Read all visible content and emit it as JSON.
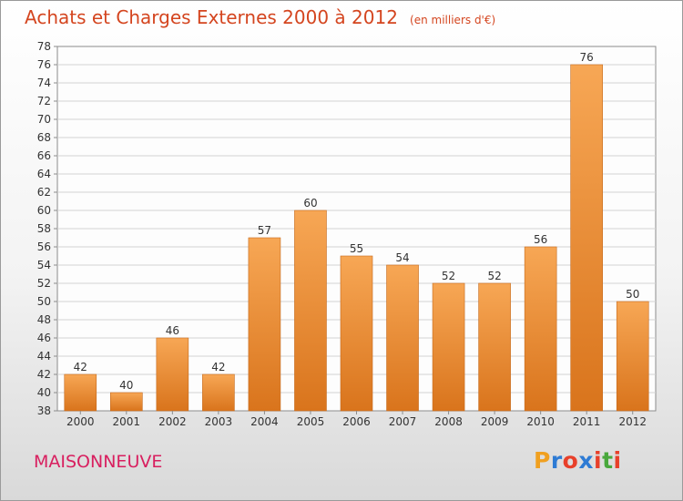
{
  "header": {
    "title": "Achats et Charges Externes 2000 à 2012",
    "subtitle": "(en milliers d'€)"
  },
  "footer": {
    "commune": "MAISONNEUVE",
    "logo_text": "Proxiti",
    "logo_colors": [
      "#f0a020",
      "#2e7bd4",
      "#e8402a",
      "#2e7bd4",
      "#e8402a",
      "#49a83c",
      "#e8402a"
    ]
  },
  "colors": {
    "bar_top": "#f7a755",
    "bar_bottom": "#d9741c",
    "title": "#d4451f",
    "commune": "#d81f5f"
  },
  "chart_data": {
    "type": "bar",
    "title": "Achats et Charges Externes 2000 à 2012",
    "subtitle": "(en milliers d'€)",
    "categories": [
      "2000",
      "2001",
      "2002",
      "2003",
      "2004",
      "2005",
      "2006",
      "2007",
      "2008",
      "2009",
      "2010",
      "2011",
      "2012"
    ],
    "values": [
      42,
      40,
      46,
      42,
      57,
      60,
      55,
      54,
      52,
      52,
      56,
      76,
      50
    ],
    "ylim": [
      38,
      78
    ],
    "yticks": [
      38,
      40,
      42,
      44,
      46,
      48,
      50,
      52,
      54,
      56,
      58,
      60,
      62,
      64,
      66,
      68,
      70,
      72,
      74,
      76,
      78
    ],
    "grid": true
  }
}
